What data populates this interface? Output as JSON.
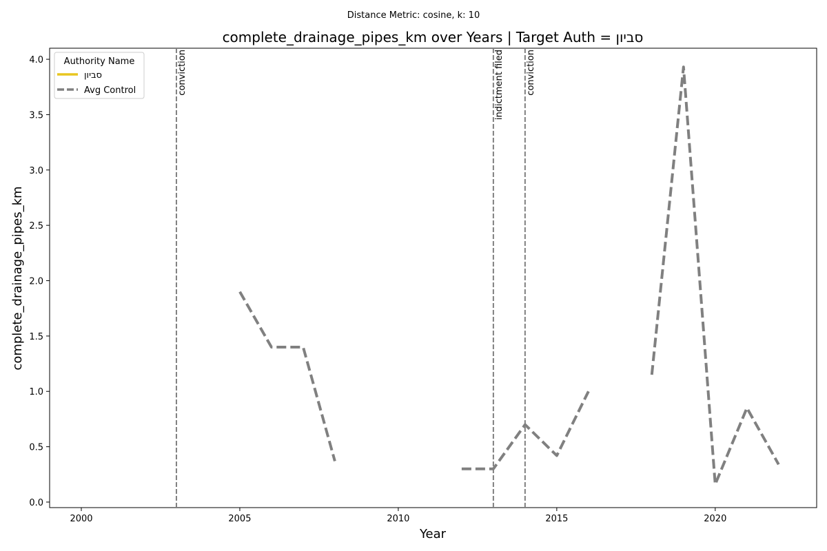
{
  "suptitle": "Distance Metric: cosine, k: 10",
  "chart_data": {
    "type": "line",
    "title": "complete_drainage_pipes_km over Years | Target Auth = סביון",
    "xlabel": "Year",
    "ylabel": "complete_drainage_pipes_km",
    "xlim": [
      1999,
      2023.2
    ],
    "ylim": [
      -0.05,
      4.1
    ],
    "xticks": [
      2000,
      2005,
      2010,
      2015,
      2020
    ],
    "yticks": [
      0.0,
      0.5,
      1.0,
      1.5,
      2.0,
      2.5,
      3.0,
      3.5,
      4.0
    ],
    "series": [
      {
        "name": "סביון",
        "color": "#e8c520",
        "style": "solid",
        "segments": []
      },
      {
        "name": "Avg Control",
        "color": "#808080",
        "style": "dashed",
        "segments": [
          [
            [
              2005,
              1.9
            ],
            [
              2006,
              1.4
            ],
            [
              2007,
              1.4
            ],
            [
              2008,
              0.37
            ]
          ],
          [
            [
              2012,
              0.3
            ],
            [
              2013,
              0.3
            ],
            [
              2014,
              0.7
            ],
            [
              2015,
              0.42
            ],
            [
              2016,
              1.0
            ]
          ],
          [
            [
              2018,
              1.15
            ],
            [
              2019,
              3.93
            ],
            [
              2020,
              0.16
            ],
            [
              2021,
              0.85
            ],
            [
              2022,
              0.34
            ]
          ]
        ]
      }
    ],
    "events": [
      {
        "year": 2003,
        "label": "conviction"
      },
      {
        "year": 2013,
        "label": "indictment filed"
      },
      {
        "year": 2014,
        "label": "conviction"
      }
    ],
    "legend": {
      "title": "Authority Name",
      "position": "upper-left"
    }
  }
}
